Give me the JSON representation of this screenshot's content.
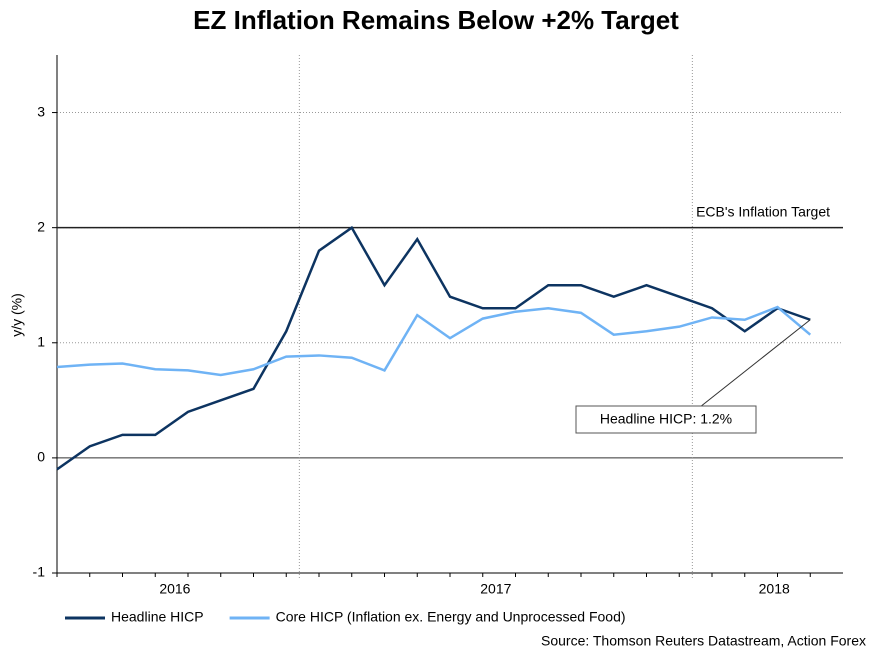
{
  "chart_data": {
    "type": "line",
    "title": "EZ Inflation Remains Below +2% Target",
    "y_label": "y/y (%)",
    "source": "Source: Thomson Reuters Datastream, Action Forex",
    "categories": [
      null,
      null,
      null,
      null,
      null,
      null,
      null,
      null,
      null,
      null,
      null,
      null,
      null,
      null,
      null,
      null,
      null,
      null,
      null,
      null,
      null,
      null,
      null,
      null
    ],
    "series": [
      {
        "name": "Headline HICP",
        "color": "#0d3461",
        "values": [
          -0.1,
          0.1,
          0.2,
          0.2,
          0.4,
          0.5,
          0.6,
          1.1,
          1.8,
          2.0,
          1.5,
          1.9,
          1.4,
          1.3,
          1.3,
          1.5,
          1.5,
          1.4,
          1.5,
          1.4,
          1.3,
          1.1,
          1.3,
          1.2
        ]
      },
      {
        "name": "Core HICP (Inflation ex. Energy and Unprocessed Food)",
        "color": "#6fb3f5",
        "values": [
          0.79,
          0.81,
          0.82,
          0.77,
          0.76,
          0.72,
          0.77,
          0.88,
          0.89,
          0.87,
          0.76,
          1.24,
          1.04,
          1.21,
          1.27,
          1.3,
          1.26,
          1.07,
          1.1,
          1.14,
          1.22,
          1.2,
          1.31,
          1.07
        ]
      }
    ],
    "ylim": [
      -1,
      3.5
    ],
    "yticks": [
      -1,
      0,
      1,
      2,
      3
    ],
    "xlim": [
      0,
      24
    ],
    "xticks": [
      7.4,
      19.4
    ],
    "xlabels": [
      {
        "value": 3.6,
        "label": "2016"
      },
      {
        "value": 13.4,
        "label": "2017"
      },
      {
        "value": 21.9,
        "label": "2018"
      }
    ],
    "target": 2,
    "target_label": "ECB's Inflation Target",
    "callout": "Headline HICP: 1.2%",
    "grid": true
  }
}
